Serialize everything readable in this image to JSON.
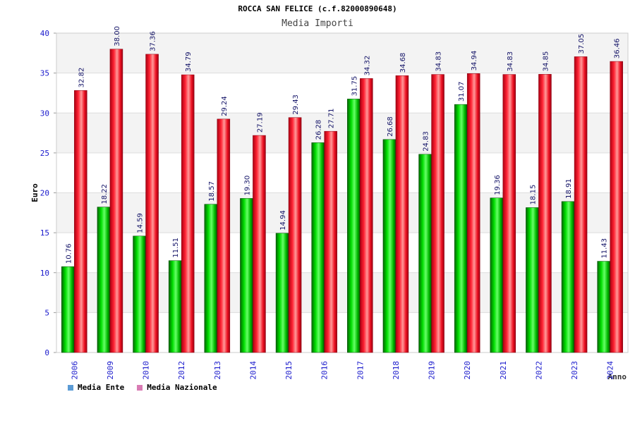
{
  "chart_data": {
    "type": "bar",
    "title": "ROCCA SAN FELICE (c.f.82000890648)",
    "subtitle": "Media Importi",
    "xlabel": "Anno",
    "ylabel": "Euro",
    "ylim": [
      0,
      40
    ],
    "yticks": [
      0,
      5,
      10,
      15,
      20,
      25,
      30,
      35,
      40
    ],
    "grid": true,
    "legend_position": "bottom-left",
    "categories": [
      "2006",
      "2009",
      "2010",
      "2012",
      "2013",
      "2014",
      "2015",
      "2016",
      "2017",
      "2018",
      "2019",
      "2020",
      "2021",
      "2022",
      "2023",
      "2024"
    ],
    "series": [
      {
        "name": "Media Ente",
        "color": "#00bb00",
        "legend_color": "#5b9bd5",
        "values": [
          10.76,
          18.22,
          14.59,
          11.51,
          18.57,
          19.3,
          14.94,
          26.28,
          31.75,
          26.68,
          24.83,
          31.07,
          19.36,
          18.15,
          18.91,
          11.43
        ],
        "labels": [
          "10.76",
          "18.22",
          "14.59",
          "11.51",
          "18.57",
          "19.30",
          "14.94",
          "26.28",
          "31.75",
          "26.68",
          "24.83",
          "31.07",
          "19.36",
          "18.15",
          "18.91",
          "11.43"
        ]
      },
      {
        "name": "Media Nazionale",
        "color": "#ee1122",
        "legend_color": "#d97bb4",
        "values": [
          32.82,
          38.0,
          37.36,
          34.79,
          29.24,
          27.19,
          29.43,
          27.71,
          34.32,
          34.68,
          34.83,
          34.94,
          34.83,
          34.85,
          37.05,
          36.46
        ],
        "labels": [
          "32.82",
          "38.00",
          "37.36",
          "34.79",
          "29.24",
          "27.19",
          "29.43",
          "27.71",
          "34.32",
          "34.68",
          "34.83",
          "34.94",
          "34.83",
          "34.85",
          "37.05",
          "36.46"
        ]
      }
    ]
  }
}
